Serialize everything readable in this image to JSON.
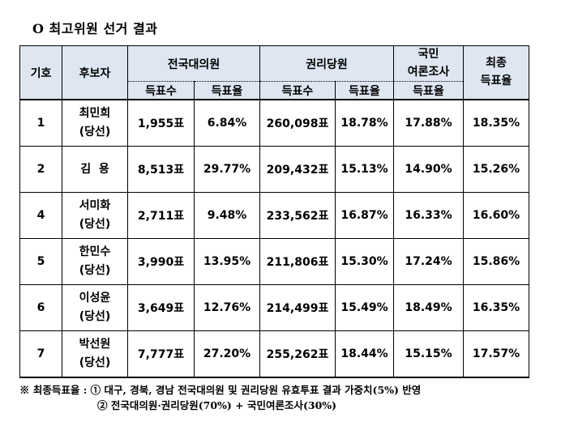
{
  "title": "O 최고위원 선거 결과",
  "headers": {
    "number": "기호",
    "candidate": "후보자",
    "delegates": "전국대의원",
    "party_members": "권리당원",
    "poll_line1": "국민",
    "poll_line2": "여론조사",
    "final_line1": "최종",
    "final_line2": "득표율",
    "votes": "득표수",
    "rate": "득표율"
  },
  "rows": [
    {
      "no": "1",
      "name": "최민희",
      "status": "(당선)",
      "del_votes": "1,955표",
      "del_rate": "6.84%",
      "mem_votes": "260,098표",
      "mem_rate": "18.78%",
      "poll_rate": "17.88%",
      "final_rate": "18.35%"
    },
    {
      "no": "2",
      "name": "김  용",
      "status": "",
      "del_votes": "8,513표",
      "del_rate": "29.77%",
      "mem_votes": "209,432표",
      "mem_rate": "15.13%",
      "poll_rate": "14.90%",
      "final_rate": "15.26%"
    },
    {
      "no": "4",
      "name": "서미화",
      "status": "(당선)",
      "del_votes": "2,711표",
      "del_rate": "9.48%",
      "mem_votes": "233,562표",
      "mem_rate": "16.87%",
      "poll_rate": "16.33%",
      "final_rate": "16.60%"
    },
    {
      "no": "5",
      "name": "한민수",
      "status": "(당선)",
      "del_votes": "3,990표",
      "del_rate": "13.95%",
      "mem_votes": "211,806표",
      "mem_rate": "15.30%",
      "poll_rate": "17.24%",
      "final_rate": "15.86%"
    },
    {
      "no": "6",
      "name": "이성윤",
      "status": "(당선)",
      "del_votes": "3,649표",
      "del_rate": "12.76%",
      "mem_votes": "214,499표",
      "mem_rate": "15.49%",
      "poll_rate": "18.49%",
      "final_rate": "16.35%"
    },
    {
      "no": "7",
      "name": "박선원",
      "status": "(당선)",
      "del_votes": "7,777표",
      "del_rate": "27.20%",
      "mem_votes": "255,262표",
      "mem_rate": "18.44%",
      "poll_rate": "15.15%",
      "final_rate": "17.57%"
    }
  ],
  "notes": {
    "line1": "※ 최종득표율 : ① 대구, 경북, 경남 전국대의원 및 권리당원 유효투표 결과 가중치(5%) 반영",
    "line2": "② 전국대의원·권리당원(70%) + 국민여론조사(30%)"
  }
}
